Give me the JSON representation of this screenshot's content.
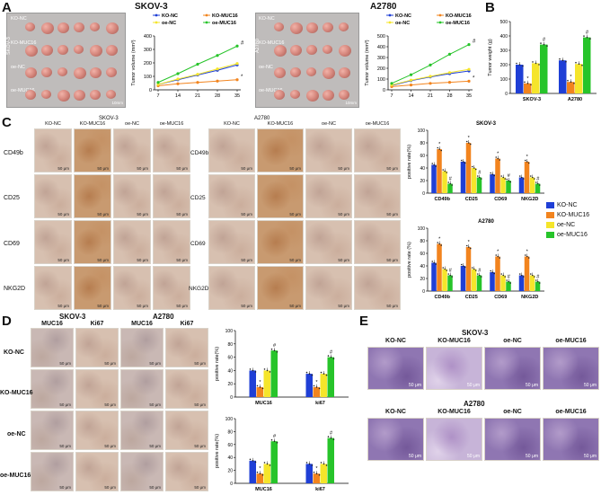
{
  "panels": {
    "A": "A",
    "B": "B",
    "C": "C",
    "D": "D",
    "E": "E"
  },
  "a": {
    "titles": [
      "SKOV-3",
      "A2780"
    ],
    "photo_groups": [
      "KO-NC",
      "KO-MUC16",
      "oe-NC",
      "oe-MUC16"
    ],
    "photo_side_labels": [
      "SKOV-3",
      "A2780"
    ],
    "scale": "10mm"
  },
  "b": {
    "ylabel": "Tumor weight (g)",
    "categories": [
      "SKOV-3",
      "A2780"
    ]
  },
  "c": {
    "headers_skov": [
      "KO-NC",
      "KO-MUC16",
      "oe-NC",
      "oe-MUC16"
    ],
    "headers_a2780": [
      "KO-NC",
      "KO-MUC16",
      "oe-NC",
      "oe-MUC16"
    ],
    "titles": [
      "SKOV-3",
      "A2780"
    ],
    "rows": [
      "CD49b",
      "CD25",
      "CD69",
      "NKG2D"
    ],
    "scale": "50 μm",
    "legend": [
      "KO-NC",
      "KO-MUC16",
      "oe-NC",
      "oe-MUC16"
    ]
  },
  "d": {
    "col_titles": [
      "SKOV-3",
      "A2780"
    ],
    "col_headers": [
      "MUC16",
      "Ki67",
      "MUC16",
      "Ki67"
    ],
    "rows": [
      "KO-NC",
      "KO-MUC16",
      "oe-NC",
      "oe-MUC16"
    ],
    "scale": "50 μm"
  },
  "e": {
    "titles": [
      "SKOV-3",
      "A2780"
    ],
    "headers": [
      "KO-NC",
      "KO-MUC16",
      "oe-NC",
      "oe-MUC16"
    ],
    "scale": "50 μm"
  },
  "colors": {
    "ko_nc": "#1f3fd6",
    "ko_muc16": "#f2841e",
    "oe_nc": "#f5e52b",
    "oe_muc16": "#27c42a"
  },
  "chart_data": [
    {
      "id": "A-SKOV3",
      "type": "line",
      "x": [
        7,
        14,
        21,
        28,
        35
      ],
      "ylabel": "Tumor volume (mm³)",
      "ylim": [
        0,
        400
      ],
      "yticks": [
        0,
        100,
        200,
        300,
        400
      ],
      "series": [
        {
          "name": "KO-NC",
          "values": [
            40,
            75,
            110,
            145,
            185
          ]
        },
        {
          "name": "KO-MUC16",
          "values": [
            30,
            45,
            55,
            65,
            75
          ]
        },
        {
          "name": "oe-NC",
          "values": [
            40,
            80,
            115,
            155,
            195
          ]
        },
        {
          "name": "oe-MUC16",
          "values": [
            55,
            120,
            190,
            255,
            325
          ]
        }
      ],
      "annotations": [
        {
          "x": 35,
          "series": "oe-MUC16",
          "text": "#"
        },
        {
          "x": 35,
          "series": "KO-MUC16",
          "text": "*"
        }
      ]
    },
    {
      "id": "A-A2780",
      "type": "line",
      "x": [
        7,
        14,
        21,
        28,
        35
      ],
      "ylabel": "Tumor volume (mm³)",
      "ylim": [
        0,
        500
      ],
      "yticks": [
        0,
        100,
        200,
        300,
        400,
        500
      ],
      "series": [
        {
          "name": "KO-NC",
          "values": [
            40,
            85,
            120,
            150,
            175
          ]
        },
        {
          "name": "KO-MUC16",
          "values": [
            30,
            45,
            60,
            70,
            80
          ]
        },
        {
          "name": "oe-NC",
          "values": [
            45,
            90,
            125,
            160,
            190
          ]
        },
        {
          "name": "oe-MUC16",
          "values": [
            60,
            140,
            230,
            330,
            420
          ]
        }
      ],
      "annotations": [
        {
          "x": 35,
          "series": "oe-MUC16",
          "text": "#"
        },
        {
          "x": 35,
          "series": "KO-MUC16",
          "text": "*"
        }
      ]
    },
    {
      "id": "B",
      "type": "bar",
      "categories": [
        "SKOV-3",
        "A2780"
      ],
      "ylabel": "Tumor weight (g)",
      "ylim": [
        0,
        500
      ],
      "yticks": [
        0,
        100,
        200,
        300,
        400,
        500
      ],
      "series": [
        {
          "name": "KO-NC",
          "values": [
            200,
            230
          ]
        },
        {
          "name": "KO-MUC16",
          "values": [
            70,
            80
          ]
        },
        {
          "name": "oe-NC",
          "values": [
            210,
            205
          ]
        },
        {
          "name": "oe-MUC16",
          "values": [
            340,
            390
          ]
        }
      ],
      "annotations": [
        "*",
        "#"
      ]
    },
    {
      "id": "C-SKOV3",
      "type": "bar",
      "title": "SKOV-3",
      "categories": [
        "CD49b",
        "CD25",
        "CD69",
        "NKG2D"
      ],
      "ylabel": "positive rate(%)",
      "ylim": [
        0,
        100
      ],
      "yticks": [
        0,
        20,
        40,
        60,
        80,
        100
      ],
      "series": [
        {
          "name": "KO-NC",
          "values": [
            45,
            50,
            30,
            25
          ]
        },
        {
          "name": "KO-MUC16",
          "values": [
            70,
            80,
            55,
            50
          ]
        },
        {
          "name": "oe-NC",
          "values": [
            35,
            40,
            25,
            25
          ]
        },
        {
          "name": "oe-MUC16",
          "values": [
            15,
            25,
            20,
            15
          ]
        }
      ]
    },
    {
      "id": "C-A2780",
      "type": "bar",
      "title": "A2780",
      "categories": [
        "CD49b",
        "CD25",
        "CD69",
        "NKG2D"
      ],
      "ylabel": "positive rate (%)",
      "ylim": [
        0,
        100
      ],
      "yticks": [
        0,
        20,
        40,
        60,
        80,
        100
      ],
      "series": [
        {
          "name": "KO-NC",
          "values": [
            45,
            40,
            30,
            25
          ]
        },
        {
          "name": "KO-MUC16",
          "values": [
            75,
            70,
            55,
            55
          ]
        },
        {
          "name": "oe-NC",
          "values": [
            35,
            35,
            25,
            25
          ]
        },
        {
          "name": "oe-MUC16",
          "values": [
            25,
            25,
            15,
            15
          ]
        }
      ]
    },
    {
      "id": "D-SKOV3",
      "type": "bar",
      "categories": [
        "MUC16",
        "ki67"
      ],
      "ylabel": "positive rate(%)",
      "ylim": [
        0,
        100
      ],
      "yticks": [
        0,
        20,
        40,
        60,
        80,
        100
      ],
      "series": [
        {
          "name": "KO-NC",
          "values": [
            40,
            35
          ]
        },
        {
          "name": "KO-MUC16",
          "values": [
            15,
            15
          ]
        },
        {
          "name": "oe-NC",
          "values": [
            40,
            35
          ]
        },
        {
          "name": "oe-MUC16",
          "values": [
            70,
            60
          ]
        }
      ]
    },
    {
      "id": "D-A2780",
      "type": "bar",
      "categories": [
        "MUC16",
        "ki67"
      ],
      "ylabel": "positive rate(%)",
      "ylim": [
        0,
        100
      ],
      "yticks": [
        0,
        20,
        40,
        60,
        80,
        100
      ],
      "series": [
        {
          "name": "KO-NC",
          "values": [
            35,
            30
          ]
        },
        {
          "name": "KO-MUC16",
          "values": [
            15,
            15
          ]
        },
        {
          "name": "oe-NC",
          "values": [
            30,
            30
          ]
        },
        {
          "name": "oe-MUC16",
          "values": [
            65,
            70
          ]
        }
      ]
    }
  ]
}
